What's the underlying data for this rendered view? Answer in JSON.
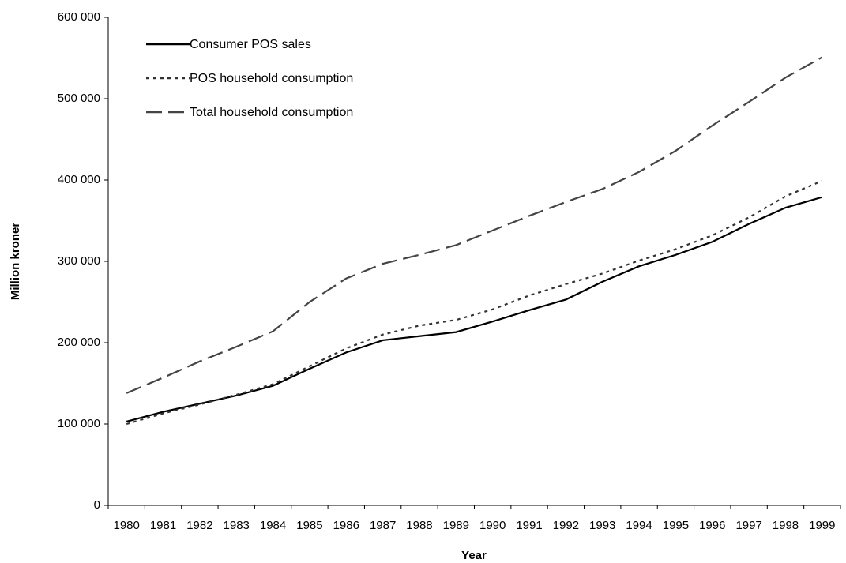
{
  "chart_data": {
    "type": "line",
    "x_label": "Year",
    "y_label": "Million kroner",
    "categories": [
      "1980",
      "1981",
      "1982",
      "1983",
      "1984",
      "1985",
      "1986",
      "1987",
      "1988",
      "1989",
      "1990",
      "1991",
      "1992",
      "1993",
      "1994",
      "1995",
      "1996",
      "1997",
      "1998",
      "1999"
    ],
    "series": [
      {
        "name": "Consumer POS sales",
        "color": "#000000",
        "dash": "solid",
        "values": [
          103000,
          115000,
          125000,
          135000,
          147000,
          168000,
          188000,
          203000,
          208000,
          213000,
          226000,
          240000,
          253000,
          275000,
          294000,
          308000,
          324000,
          346000,
          366000,
          379000
        ]
      },
      {
        "name": "POS household consumption",
        "color": "#333333",
        "dash": "dotted",
        "values": [
          100000,
          113000,
          124000,
          136000,
          149000,
          171000,
          193000,
          210000,
          221000,
          228000,
          241000,
          258000,
          272000,
          285000,
          301000,
          315000,
          332000,
          354000,
          380000,
          399000
        ]
      },
      {
        "name": "Total household consumption",
        "color": "#444444",
        "dash": "dashed",
        "values": [
          138000,
          157000,
          177000,
          195000,
          214000,
          250000,
          279000,
          297000,
          308000,
          320000,
          338000,
          356000,
          373000,
          389000,
          410000,
          436000,
          467000,
          496000,
          526000,
          551000
        ]
      }
    ],
    "ylim": [
      0,
      600000
    ],
    "yticks": [
      0,
      {
        "value": 100000,
        "label": "100 000"
      },
      {
        "value": 200000,
        "label": "200 000"
      },
      {
        "value": 300000,
        "label": "300 000"
      },
      {
        "value": 400000,
        "label": "400 000"
      },
      {
        "value": 500000,
        "label": "500 000"
      },
      {
        "value": 600000,
        "label": "600 000"
      }
    ],
    "grid": false,
    "legend": "top-left"
  }
}
